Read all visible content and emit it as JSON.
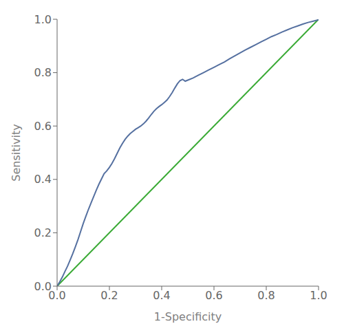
{
  "chart_data": {
    "type": "line",
    "xlabel": "1-Specificity",
    "ylabel": "Sensitivity",
    "xlim": [
      0.0,
      1.0
    ],
    "ylim": [
      0.0,
      1.0
    ],
    "xticks": [
      {
        "value": 0.0,
        "label": "0.0"
      },
      {
        "value": 0.2,
        "label": "0.2"
      },
      {
        "value": 0.4,
        "label": "0.4"
      },
      {
        "value": 0.6,
        "label": "0.6"
      },
      {
        "value": 0.8,
        "label": "0.8"
      },
      {
        "value": 1.0,
        "label": "1.0"
      }
    ],
    "yticks": [
      {
        "value": 0.0,
        "label": "0.0"
      },
      {
        "value": 0.2,
        "label": "0.2"
      },
      {
        "value": 0.4,
        "label": "0.4"
      },
      {
        "value": 0.6,
        "label": "0.6"
      },
      {
        "value": 0.8,
        "label": "0.8"
      },
      {
        "value": 1.0,
        "label": "1.0"
      }
    ],
    "grid": false,
    "series": [
      {
        "color": "#3aaa35",
        "x": [
          0,
          1
        ],
        "values": [
          0,
          1
        ]
      },
      {
        "color": "#5570a0",
        "x": [
          0.0,
          0.005,
          0.01,
          0.015,
          0.02,
          0.03,
          0.04,
          0.05,
          0.06,
          0.07,
          0.08,
          0.09,
          0.1,
          0.11,
          0.12,
          0.13,
          0.14,
          0.15,
          0.16,
          0.17,
          0.18,
          0.19,
          0.2,
          0.21,
          0.22,
          0.23,
          0.24,
          0.25,
          0.26,
          0.27,
          0.28,
          0.29,
          0.3,
          0.31,
          0.32,
          0.33,
          0.34,
          0.35,
          0.36,
          0.37,
          0.38,
          0.39,
          0.4,
          0.41,
          0.42,
          0.43,
          0.44,
          0.45,
          0.46,
          0.47,
          0.48,
          0.49,
          0.5,
          0.52,
          0.54,
          0.56,
          0.58,
          0.6,
          0.62,
          0.64,
          0.66,
          0.68,
          0.7,
          0.72,
          0.74,
          0.76,
          0.78,
          0.8,
          0.82,
          0.84,
          0.86,
          0.88,
          0.9,
          0.92,
          0.94,
          0.96,
          0.98,
          1.0
        ],
        "values": [
          0.0,
          0.008,
          0.016,
          0.025,
          0.034,
          0.055,
          0.075,
          0.098,
          0.122,
          0.148,
          0.175,
          0.205,
          0.235,
          0.262,
          0.288,
          0.312,
          0.336,
          0.36,
          0.382,
          0.402,
          0.422,
          0.432,
          0.445,
          0.46,
          0.478,
          0.498,
          0.518,
          0.535,
          0.55,
          0.562,
          0.572,
          0.58,
          0.588,
          0.594,
          0.6,
          0.608,
          0.618,
          0.63,
          0.643,
          0.655,
          0.665,
          0.673,
          0.68,
          0.688,
          0.697,
          0.71,
          0.725,
          0.742,
          0.758,
          0.77,
          0.775,
          0.768,
          0.772,
          0.78,
          0.79,
          0.8,
          0.81,
          0.82,
          0.83,
          0.84,
          0.852,
          0.863,
          0.874,
          0.885,
          0.895,
          0.905,
          0.915,
          0.925,
          0.935,
          0.943,
          0.952,
          0.96,
          0.968,
          0.975,
          0.982,
          0.988,
          0.993,
          0.998
        ]
      }
    ]
  }
}
